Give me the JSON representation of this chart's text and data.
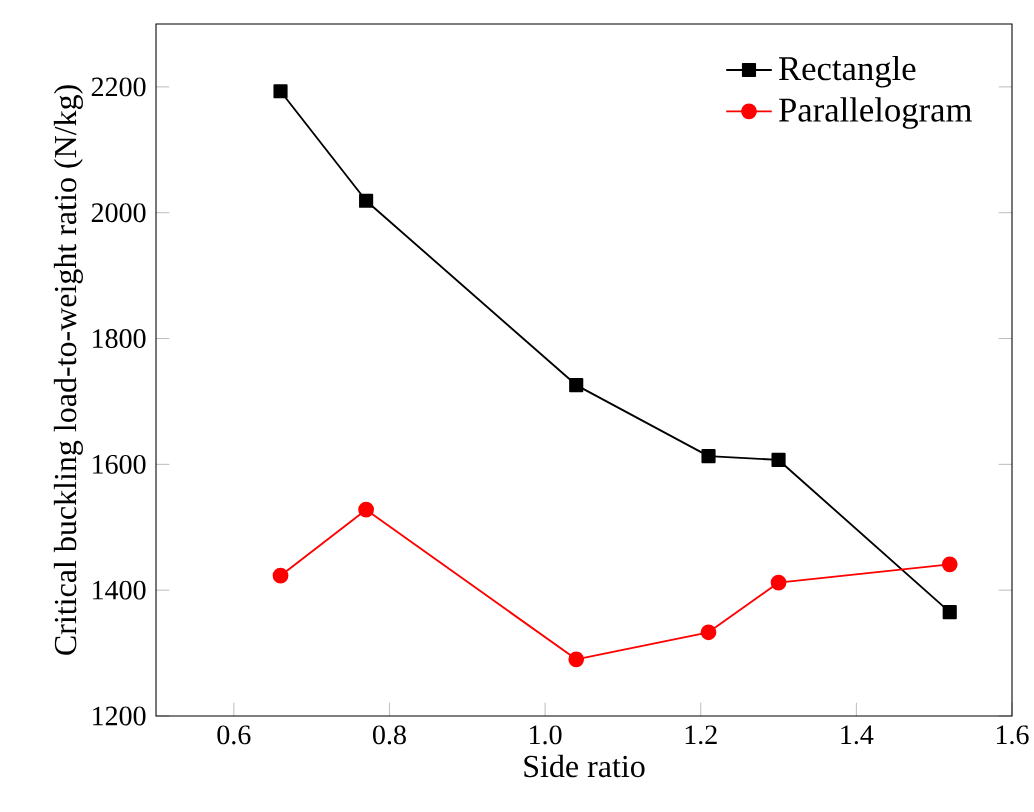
{
  "chart_data": {
    "type": "line",
    "xlabel": "Side ratio",
    "ylabel": "Critical buckling load-to-weight ratio (N/kg)",
    "xlim": [
      0.5,
      1.6
    ],
    "xticks": [
      0.6,
      0.8,
      {
        "value": 1.0,
        "label": "1.0"
      },
      1.2,
      1.4,
      1.6
    ],
    "ylim": [
      1200,
      2300
    ],
    "yticks": [
      1200,
      1400,
      1600,
      1800,
      2000,
      2200
    ],
    "grid": false,
    "legend": "top right",
    "line_style": "solid",
    "x": [
      0.66,
      0.77,
      1.04,
      1.21,
      1.3,
      1.52
    ],
    "series": [
      {
        "name": "Rectangle",
        "color": "#000000",
        "marker": "square",
        "values": [
          2193,
          2019,
          1726,
          1613,
          1607,
          1365
        ]
      },
      {
        "name": "Parallelogram",
        "color": "#ff0000",
        "marker": "circle",
        "values": [
          1423,
          1528,
          1290,
          1333,
          1412,
          1441
        ]
      }
    ]
  }
}
